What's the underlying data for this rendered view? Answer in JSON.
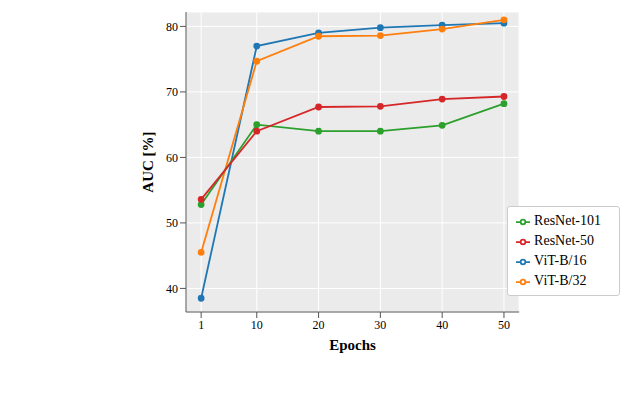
{
  "chart_data": {
    "type": "line",
    "x_label": "Epochs",
    "y_label": "AUC [%]",
    "x": [
      1,
      10,
      20,
      30,
      40,
      50
    ],
    "xlim": [
      -1.45,
      52.45
    ],
    "xticks": [
      1,
      10,
      20,
      30,
      40,
      50
    ],
    "ylim": [
      36.4,
      82.2
    ],
    "yticks": [
      40,
      50,
      60,
      70,
      80
    ],
    "grid": true,
    "legend": "lower right",
    "series": [
      {
        "name": "ViT-B/16",
        "color": "#1f77b4",
        "marker": "circle",
        "line_style": "solid",
        "values": [
          38.5,
          77.0,
          79.0,
          79.8,
          80.2,
          80.5
        ]
      },
      {
        "name": "ViT-B/32",
        "color": "#ff7f0e",
        "marker": "circle",
        "line_style": "solid",
        "values": [
          45.5,
          74.7,
          78.5,
          78.6,
          79.6,
          81.0
        ]
      },
      {
        "name": "ResNet-101",
        "color": "#2ca02c",
        "marker": "circle",
        "line_style": "solid",
        "values": [
          52.8,
          65.0,
          64.0,
          64.0,
          64.9,
          68.2
        ]
      },
      {
        "name": "ResNet-50",
        "color": "#d62728",
        "marker": "circle",
        "line_style": "solid",
        "values": [
          53.6,
          64.0,
          67.7,
          67.8,
          68.9,
          69.3
        ]
      }
    ]
  }
}
